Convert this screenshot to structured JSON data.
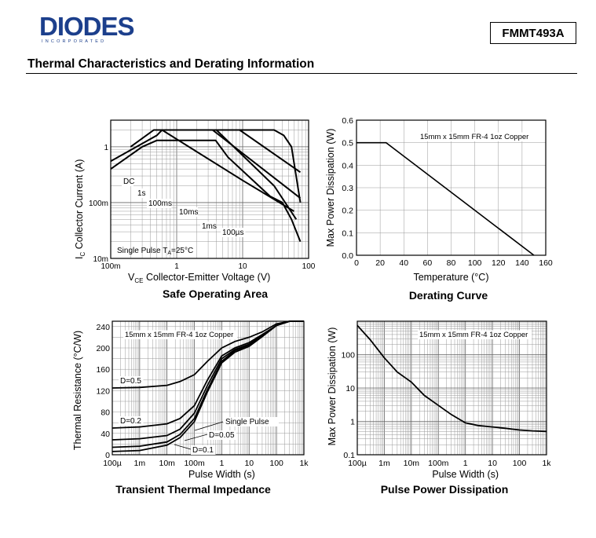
{
  "header": {
    "logo_text": "DIODES",
    "logo_subtext": "INCORPORATED",
    "part_number": "FMMT493A",
    "section_title": "Thermal Characteristics and Derating Information"
  },
  "chart_data": [
    {
      "id": "soa",
      "type": "line",
      "title": "Safe Operating Area",
      "xlabel": "Collector-Emitter Voltage (V)",
      "xlabel_prefix": "V",
      "xlabel_sub": "CE",
      "ylabel": "Collector Current (A)",
      "ylabel_prefix": "I",
      "ylabel_sub": "C",
      "x_scale": "log",
      "y_scale": "log",
      "xlim": [
        0.1,
        100
      ],
      "ylim": [
        0.01,
        3
      ],
      "x_tick_labels": [
        "100m",
        "1",
        "10",
        "100"
      ],
      "y_tick_labels": [
        "10m",
        "100m",
        "1"
      ],
      "annotation_single_pulse": "Single Pulse",
      "annotation_ta": "T",
      "annotation_ta_sub": "A",
      "annotation_ta_value": "=25°C",
      "series": [
        {
          "name": "DC",
          "x": [
            0.1,
            0.3,
            0.5,
            3.0,
            3.9,
            6.0,
            26.0,
            40.0,
            55.0,
            75.0
          ],
          "y": [
            0.4,
            1.0,
            1.3,
            1.3,
            1.3,
            0.65,
            0.13,
            0.1,
            0.05,
            0.02
          ]
        },
        {
          "name": "1s",
          "x": [
            0.1,
            0.5,
            0.6,
            4.0,
            30.0,
            65.0
          ],
          "y": [
            0.55,
            1.6,
            2.0,
            2.0,
            0.2,
            0.05
          ]
        },
        {
          "name": "100ms",
          "x": [
            0.2,
            0.45,
            0.6,
            10.0,
            60.0
          ],
          "y": [
            1.0,
            2.0,
            2.0,
            0.25,
            0.07
          ]
        },
        {
          "name": "10ms",
          "x": [
            0.7,
            3.5,
            75.0
          ],
          "y": [
            2.0,
            2.0,
            0.12
          ]
        },
        {
          "name": "1ms",
          "x": [
            1.3,
            9.0,
            75.0
          ],
          "y": [
            2.0,
            2.0,
            0.35
          ]
        },
        {
          "name": "100µs",
          "x": [
            5.0,
            30.0,
            42.0,
            55.0,
            75.0
          ],
          "y": [
            2.0,
            2.0,
            1.6,
            1.0,
            0.1
          ]
        }
      ],
      "series_labels": [
        "DC",
        "1s",
        "100ms",
        "10ms",
        "1ms",
        "100µs"
      ]
    },
    {
      "id": "derating",
      "type": "line",
      "title": "Derating Curve",
      "xlabel": "Temperature",
      "xlabel_unit": "(°C)",
      "ylabel": "Max Power Dissipation (W)",
      "annotation": "15mm x 15mm FR-4 1oz Copper",
      "xlim": [
        0,
        160
      ],
      "ylim": [
        0,
        0.6
      ],
      "x_tick_labels": [
        "0",
        "20",
        "40",
        "60",
        "80",
        "100",
        "120",
        "140",
        "160"
      ],
      "y_tick_labels": [
        "0.0",
        "0.1",
        "0.2",
        "0.3",
        "0.4",
        "0.5",
        "0.6"
      ],
      "series": [
        {
          "x": [
            0,
            25,
            150
          ],
          "y": [
            0.5,
            0.5,
            0.0
          ]
        }
      ]
    },
    {
      "id": "transient",
      "type": "line",
      "title": "Transient Thermal Impedance",
      "xlabel": "Pulse Width (s)",
      "ylabel": "Thermal Resistance (°C/W)",
      "annotation": "15mm x 15mm FR-4 1oz Copper",
      "x_scale": "log",
      "xlim": [
        0.0001,
        1000
      ],
      "ylim": [
        0,
        250
      ],
      "x_tick_labels": [
        "100µ",
        "1m",
        "10m",
        "100m",
        "1",
        "10",
        "100",
        "1k"
      ],
      "y_tick_labels": [
        "0",
        "40",
        "80",
        "120",
        "160",
        "200",
        "240"
      ],
      "series": [
        {
          "name": "D=0.5",
          "x": [
            0.0001,
            0.001,
            0.01,
            0.03,
            0.1,
            0.3,
            1,
            3,
            10,
            30,
            100,
            300,
            1000
          ],
          "y": [
            125,
            126,
            130,
            137,
            150,
            175,
            200,
            212,
            220,
            230,
            245,
            250,
            250
          ]
        },
        {
          "name": "D=0.2",
          "x": [
            0.0001,
            0.001,
            0.01,
            0.03,
            0.1,
            0.3,
            1,
            3,
            10,
            30,
            100,
            300,
            1000
          ],
          "y": [
            50,
            52,
            58,
            68,
            92,
            140,
            185,
            200,
            210,
            225,
            242,
            250,
            250
          ]
        },
        {
          "name": "D=0.05",
          "x": [
            0.0001,
            0.001,
            0.01,
            0.03,
            0.1,
            0.3,
            1,
            3,
            10,
            30,
            100,
            300,
            1000
          ],
          "y": [
            14,
            16,
            24,
            38,
            68,
            122,
            175,
            195,
            205,
            222,
            242,
            250,
            250
          ]
        },
        {
          "name": "D=0.1",
          "x": [
            0.0001,
            0.001,
            0.01,
            0.03,
            0.1,
            0.3,
            1,
            3,
            10,
            30,
            100,
            300,
            1000
          ],
          "y": [
            28,
            30,
            36,
            48,
            78,
            130,
            180,
            197,
            207,
            223,
            242,
            250,
            250
          ]
        },
        {
          "name": "Single Pulse",
          "x": [
            0.0001,
            0.001,
            0.01,
            0.03,
            0.1,
            0.3,
            1,
            3,
            10,
            30,
            100,
            300,
            1000
          ],
          "y": [
            6,
            8,
            18,
            32,
            62,
            118,
            172,
            192,
            203,
            221,
            242,
            250,
            250
          ]
        }
      ],
      "series_labels": [
        "D=0.5",
        "D=0.2",
        "Single Pulse",
        "D=0.05",
        "D=0.1"
      ]
    },
    {
      "id": "pulse_power",
      "type": "line",
      "title": "Pulse Power Dissipation",
      "xlabel": "Pulse Width (s)",
      "ylabel": "Max Power Dissipation (W)",
      "annotation": "15mm x 15mm FR-4 1oz Copper",
      "x_scale": "log",
      "y_scale": "log",
      "xlim": [
        0.0001,
        1000
      ],
      "ylim": [
        0.1,
        1000
      ],
      "x_tick_labels": [
        "100µ",
        "1m",
        "10m",
        "100m",
        "1",
        "10",
        "100",
        "1k"
      ],
      "y_tick_labels": [
        "0.1",
        "1",
        "10",
        "100"
      ],
      "series": [
        {
          "name": "Single Pulse",
          "x": [
            0.0001,
            0.0003,
            0.001,
            0.003,
            0.01,
            0.03,
            0.1,
            0.3,
            1,
            3,
            10,
            30,
            100,
            300,
            1000
          ],
          "y": [
            750,
            280,
            80,
            30,
            15,
            6,
            3,
            1.6,
            0.9,
            0.75,
            0.68,
            0.62,
            0.55,
            0.52,
            0.5
          ]
        }
      ]
    }
  ]
}
